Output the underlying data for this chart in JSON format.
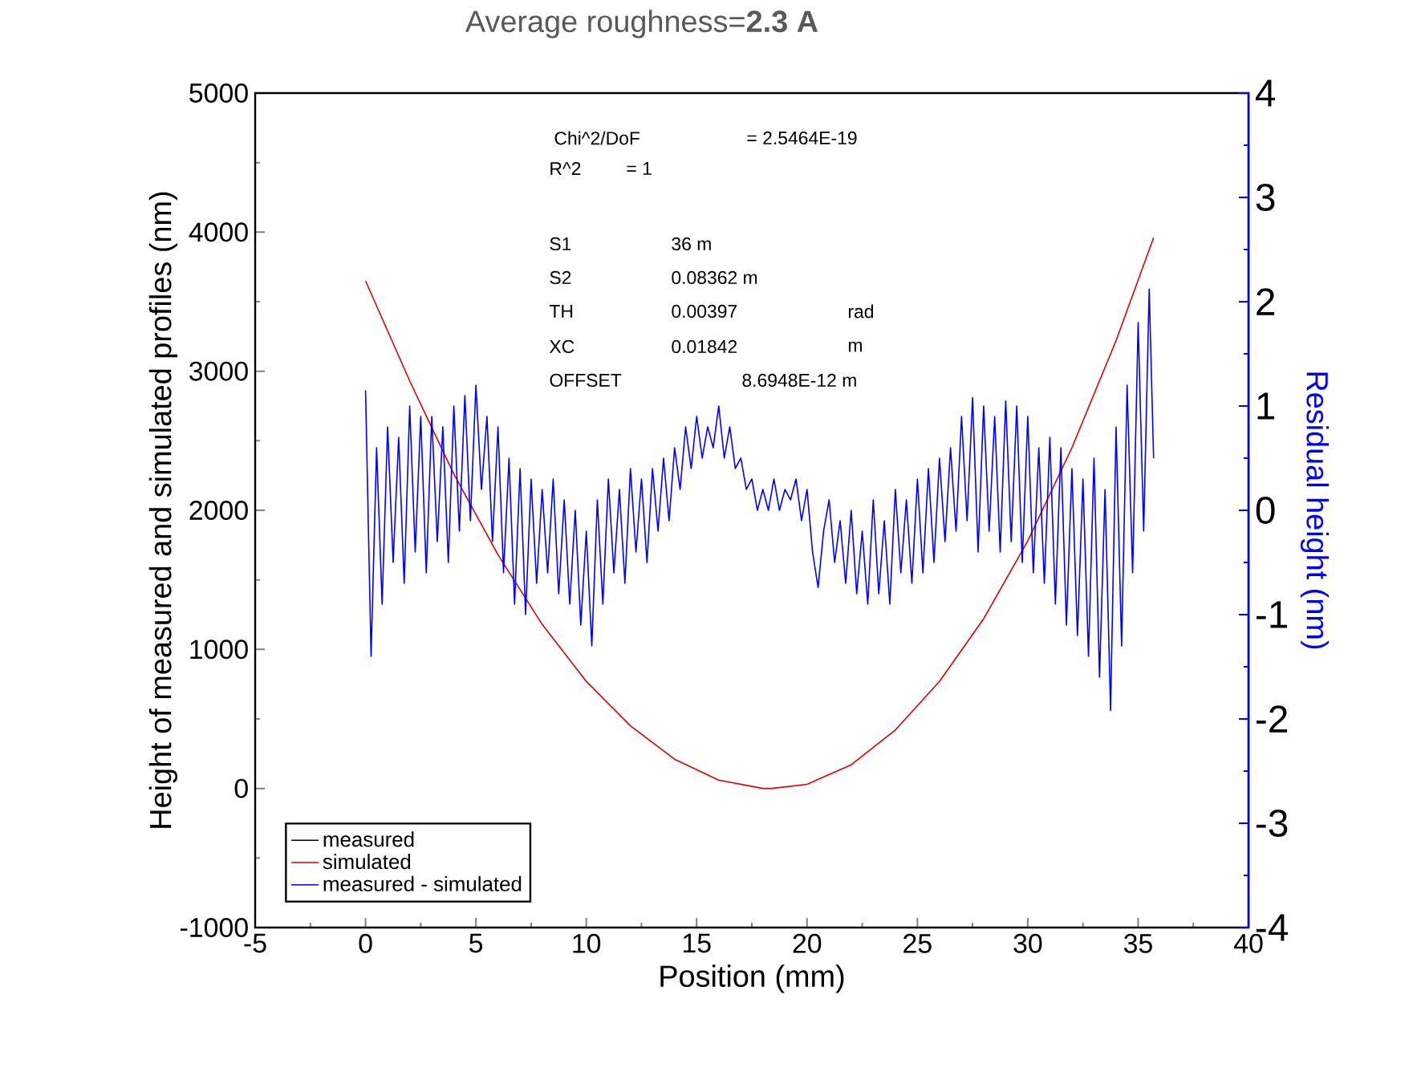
{
  "chart_data": {
    "type": "line",
    "title": "Average roughness=**2.3 A**",
    "xlabel": "Position (mm)",
    "ylabel": "Height of measured and simulated profiles (nm)",
    "y2label": "Residual height (nm)",
    "xlim": [
      -5,
      40
    ],
    "xticks": [
      -5,
      0,
      5,
      10,
      15,
      20,
      25,
      30,
      35,
      40
    ],
    "ylim": [
      -1000,
      5000
    ],
    "yticks": [
      -1000,
      0,
      1000,
      2000,
      3000,
      4000,
      5000
    ],
    "y2lim": [
      -4,
      4
    ],
    "y2ticks": [
      -4,
      -3,
      -2,
      -1,
      0,
      1,
      2,
      3,
      4
    ],
    "legend": "bottom left",
    "grid": false,
    "marker": "none",
    "line_style": "solid",
    "annotations": [
      "Chi^2/DoF",
      "= 2.5464E-19",
      "R^2",
      "=  1",
      "S1",
      "36 m",
      "S2",
      "0.08362 m",
      "TH",
      "0.00397",
      "rad",
      "XC",
      "0.01842",
      "m",
      "OFFSET",
      "8.6948E-12 m"
    ],
    "series": [
      {
        "name": "measured",
        "color": "#000000",
        "values": [
          null,
          null,
          null,
          null,
          null,
          null,
          null,
          null,
          null,
          null,
          null,
          null,
          null,
          null,
          null,
          null,
          null,
          null,
          null,
          null
        ]
      },
      {
        "name": "simulated",
        "color": "#dd0000",
        "x": [
          0,
          2,
          4,
          6,
          8,
          10,
          12,
          14,
          16,
          18,
          18.4,
          20,
          22,
          24,
          26,
          28,
          30,
          32,
          34,
          35.7
        ],
        "values": [
          3650,
          2930,
          2260,
          1680,
          1180,
          770,
          450,
          210,
          60,
          0,
          0,
          30,
          170,
          420,
          770,
          1220,
          1780,
          2450,
          3220,
          3960
        ]
      },
      {
        "name": "measured - simulated",
        "color": "#0000ff",
        "axis": "y2",
        "x": [
          0,
          0.25,
          0.5,
          0.75,
          1,
          1.25,
          1.5,
          1.75,
          2,
          2.25,
          2.5,
          2.75,
          3,
          3.25,
          3.5,
          3.75,
          4,
          4.25,
          4.5,
          4.75,
          5,
          5.25,
          5.5,
          5.75,
          6,
          6.25,
          6.5,
          6.75,
          7,
          7.25,
          7.5,
          7.75,
          8,
          8.25,
          8.5,
          8.75,
          9,
          9.25,
          9.5,
          9.75,
          10,
          10.25,
          10.5,
          10.75,
          11,
          11.25,
          11.5,
          11.75,
          12,
          12.25,
          12.5,
          12.75,
          13,
          13.25,
          13.5,
          13.75,
          14,
          14.25,
          14.5,
          14.75,
          15,
          15.25,
          15.5,
          15.75,
          16,
          16.25,
          16.5,
          16.75,
          17,
          17.25,
          17.5,
          17.75,
          18,
          18.25,
          18.5,
          18.75,
          19,
          19.25,
          19.5,
          19.75,
          20,
          20.25,
          20.5,
          20.75,
          21,
          21.25,
          21.5,
          21.75,
          22,
          22.25,
          22.5,
          22.75,
          23,
          23.25,
          23.5,
          23.75,
          24,
          24.25,
          24.5,
          24.75,
          25,
          25.25,
          25.5,
          25.75,
          26,
          26.25,
          26.5,
          26.75,
          27,
          27.25,
          27.5,
          27.75,
          28,
          28.25,
          28.5,
          28.75,
          29,
          29.25,
          29.5,
          29.75,
          30,
          30.25,
          30.5,
          30.75,
          31,
          31.25,
          31.5,
          31.75,
          32,
          32.25,
          32.5,
          32.75,
          33,
          33.25,
          33.5,
          33.75,
          34,
          34.25,
          34.5,
          34.75,
          35,
          35.25,
          35.5,
          35.7
        ],
        "values": [
          1.15,
          -1.4,
          0.6,
          -0.9,
          0.8,
          -0.5,
          0.7,
          -0.7,
          1.0,
          -0.4,
          0.9,
          -0.6,
          0.9,
          -0.3,
          0.8,
          -0.5,
          1.0,
          -0.2,
          1.1,
          -0.1,
          1.2,
          0.2,
          0.9,
          -0.3,
          0.8,
          -0.6,
          0.5,
          -0.9,
          0.4,
          -1.0,
          0.3,
          -0.7,
          0.2,
          -0.6,
          0.3,
          -0.8,
          0.1,
          -0.9,
          0.0,
          -1.1,
          -0.2,
          -1.3,
          0.1,
          -0.9,
          0.3,
          -0.6,
          0.2,
          -0.7,
          0.4,
          -0.4,
          0.3,
          -0.5,
          0.4,
          -0.2,
          0.5,
          -0.1,
          0.6,
          0.2,
          0.8,
          0.4,
          0.9,
          0.5,
          0.8,
          0.6,
          1.0,
          0.5,
          0.8,
          0.4,
          0.5,
          0.2,
          0.3,
          0.0,
          0.2,
          0.0,
          0.3,
          0.0,
          0.2,
          0.1,
          0.3,
          -0.1,
          0.2,
          -0.4,
          -0.74,
          -0.2,
          0.1,
          -0.5,
          -0.1,
          -0.7,
          0.0,
          -0.8,
          -0.2,
          -0.9,
          0.1,
          -0.8,
          -0.1,
          -0.9,
          0.2,
          -0.6,
          0.1,
          -0.7,
          0.3,
          -0.6,
          0.4,
          -0.5,
          0.5,
          -0.3,
          0.6,
          -0.2,
          0.9,
          -0.1,
          1.08,
          -0.4,
          1.0,
          -0.2,
          0.9,
          -0.4,
          1.05,
          -0.3,
          1.0,
          -0.5,
          0.9,
          -0.6,
          0.6,
          -0.7,
          0.7,
          -0.9,
          0.6,
          -1.1,
          0.4,
          -1.2,
          0.3,
          -1.4,
          0.5,
          -1.6,
          0.2,
          -1.92,
          0.8,
          -1.3,
          1.2,
          -0.6,
          1.8,
          -0.2,
          2.12,
          0.5
        ]
      }
    ]
  }
}
